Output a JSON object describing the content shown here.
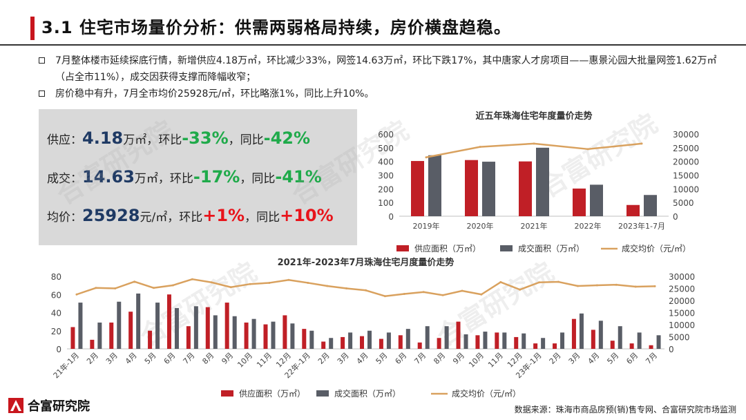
{
  "header": {
    "title": "3.1 住宅市场量价分析：供需两弱格局持续，房价横盘趋稳。"
  },
  "bullets": [
    "7月整体楼市延续探底行情，新增供应4.18万㎡，环比减少33%，网签14.63万㎡，环比下跌17%，其中唐家人才房项目——惠景沁园大批量网签1.62万㎡（占全市11%），成交因获得支撑而降幅收窄；",
    "房价稳中有升，7月全市均价25928元/㎡，环比略涨1%，同比上升10%。"
  ],
  "kpi": {
    "supply": {
      "label": "供应：",
      "value": "4.18",
      "unit": "万㎡，",
      "mom_label": "环比",
      "mom": "-33%",
      "yoy_sep": "，同比",
      "yoy": "-42%"
    },
    "deal": {
      "label": "成交：",
      "value": "14.63",
      "unit": "万㎡，",
      "mom_label": "环比",
      "mom": "-17%",
      "yoy_sep": "，同比",
      "yoy": "-41%"
    },
    "price": {
      "label": "均价：",
      "value": "25928",
      "unit": "元/㎡，",
      "mom_label": "环比",
      "mom": "+1%",
      "yoy_sep": "，同比",
      "yoy": "+10%"
    }
  },
  "colors": {
    "supply": "#c01f26",
    "deal": "#595d66",
    "price": "#d9a15e",
    "accent": "#c8161d",
    "kpi_neg": "#1faa4a",
    "kpi_pos": "#e8141b"
  },
  "legend": {
    "supply": "供应面积（万㎡）",
    "deal": "成交面积（万㎡）",
    "price": "成交均价（元/㎡）"
  },
  "watermark": "合富研究院",
  "footer": {
    "brand": "合富研究院",
    "source": "数据来源：珠海市商品房预(销)售专网、合富研究院市场监测"
  },
  "chart_data": [
    {
      "type": "bar",
      "title": "近五年珠海住宅年度量价走势",
      "categories": [
        "2019年",
        "2020年",
        "2021年",
        "2022年",
        "2023年1-7月"
      ],
      "series": [
        {
          "name": "供应面积（万㎡）",
          "type": "bar",
          "axis": "left",
          "values": [
            403,
            410,
            400,
            202,
            82
          ]
        },
        {
          "name": "成交面积（万㎡）",
          "type": "bar",
          "axis": "left",
          "values": [
            445,
            398,
            500,
            230,
            155
          ]
        },
        {
          "name": "成交均价（元/㎡）",
          "type": "line",
          "axis": "right",
          "values": [
            21500,
            25300,
            26500,
            24500,
            26500
          ]
        }
      ],
      "y_left": {
        "min": 0,
        "max": 600,
        "ticks": [
          0,
          100,
          200,
          300,
          400,
          500,
          600
        ]
      },
      "y_right": {
        "min": 0,
        "max": 30000,
        "ticks": [
          0,
          5000,
          10000,
          15000,
          20000,
          25000,
          30000
        ]
      },
      "legend_position": "bottom"
    },
    {
      "type": "bar",
      "title": "2021年-2023年7月珠海住宅月度量价走势",
      "categories": [
        "21年-1月",
        "2月",
        "3月",
        "4月",
        "5月",
        "6月",
        "7月",
        "8月",
        "9月",
        "10月",
        "11月",
        "12月",
        "22年-1月",
        "2月",
        "3月",
        "4月",
        "5月",
        "6月",
        "7月",
        "8月",
        "9月",
        "10月",
        "11月",
        "12月",
        "23年-1月",
        "2月",
        "3月",
        "4月",
        "5月",
        "6月",
        "7月"
      ],
      "series": [
        {
          "name": "供应面积（万㎡）",
          "type": "bar",
          "axis": "left",
          "values": [
            24,
            10,
            29,
            41,
            20,
            60,
            25,
            46,
            51,
            29,
            27,
            37,
            22,
            8,
            13,
            14,
            11,
            15,
            7,
            12,
            30,
            15,
            18,
            13,
            6,
            6,
            33,
            21,
            9,
            6,
            4
          ]
        },
        {
          "name": "成交面积（万㎡）",
          "type": "bar",
          "axis": "left",
          "values": [
            51,
            29,
            52,
            61,
            51,
            45,
            47,
            37,
            36,
            33,
            30,
            28,
            20,
            12,
            18,
            20,
            18,
            22,
            25,
            25,
            16,
            19,
            18,
            17,
            12,
            18,
            39,
            31,
            25,
            18,
            15
          ]
        },
        {
          "name": "成交均价（元/㎡）",
          "type": "line",
          "axis": "right",
          "values": [
            22500,
            25200,
            25000,
            27800,
            25200,
            26300,
            28800,
            27500,
            25500,
            26800,
            27300,
            28500,
            27300,
            26000,
            25000,
            24200,
            21800,
            22700,
            23500,
            22200,
            24000,
            22500,
            27600,
            24500,
            27500,
            27700,
            26000,
            26300,
            26500,
            25700,
            25900
          ]
        }
      ],
      "y_left": {
        "min": 0,
        "max": 80,
        "ticks": [
          0,
          20,
          40,
          60,
          80
        ]
      },
      "y_right": {
        "min": 0,
        "max": 30000,
        "ticks": [
          0,
          5000,
          10000,
          15000,
          20000,
          25000,
          30000
        ]
      },
      "legend_position": "bottom"
    }
  ]
}
